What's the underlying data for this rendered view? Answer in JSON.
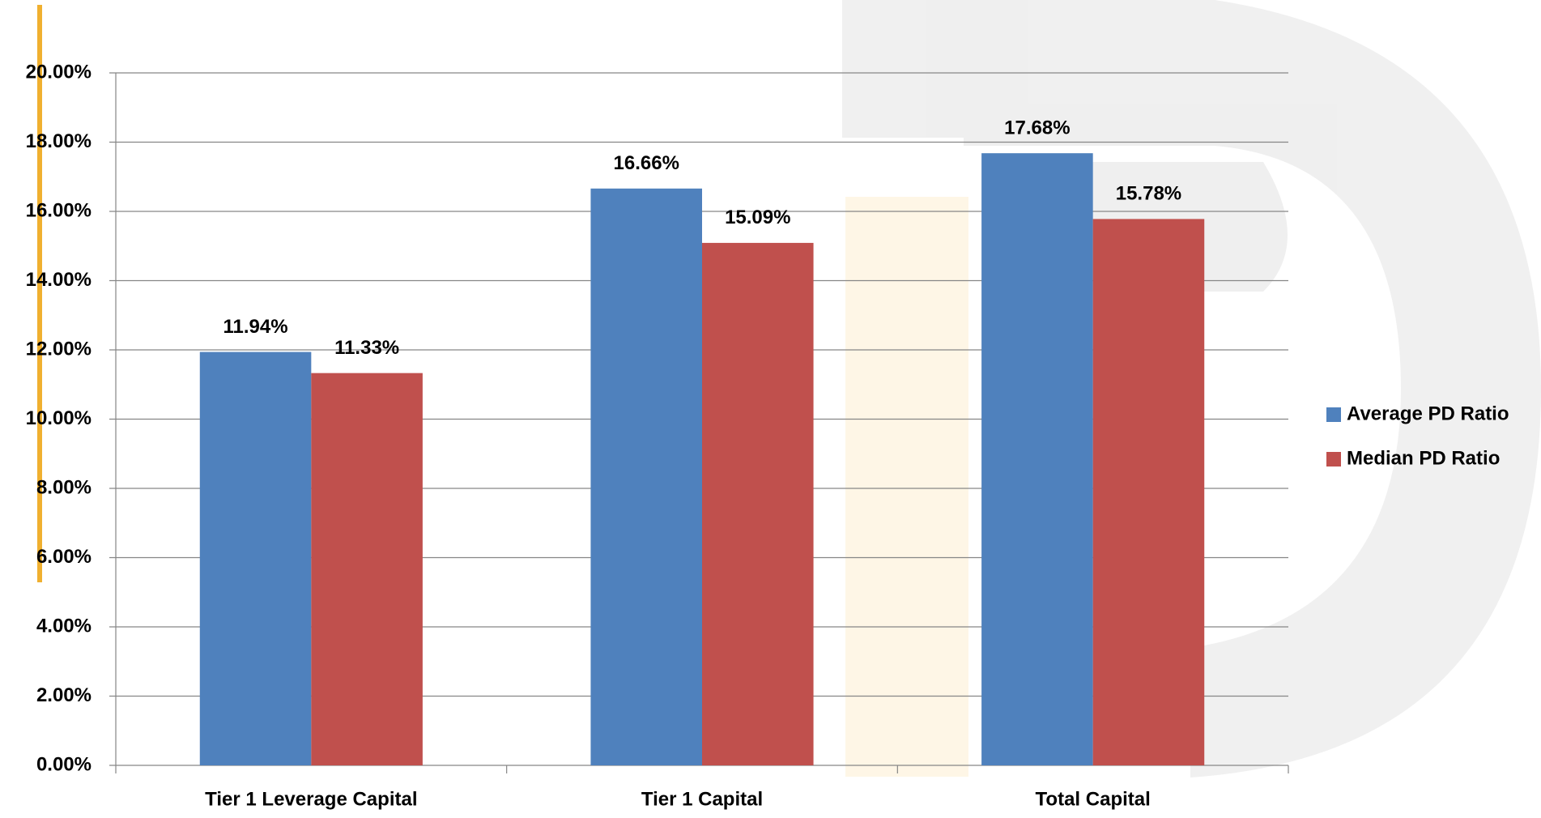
{
  "chart_data": {
    "type": "bar",
    "categories": [
      "Tier 1 Leverage Capital",
      "Tier 1 Capital",
      "Total Capital"
    ],
    "series": [
      {
        "name": "Average PD Ratio",
        "color": "#4f81bd",
        "values": [
          11.94,
          16.66,
          17.68
        ],
        "value_labels": [
          "11.94%",
          "16.66%",
          "17.68%"
        ]
      },
      {
        "name": "Median PD Ratio",
        "color": "#c0504d",
        "values": [
          11.33,
          15.09,
          15.78
        ],
        "value_labels": [
          "11.33%",
          "15.09%",
          "15.78%"
        ]
      }
    ],
    "ylim": [
      0,
      20
    ],
    "yticks": [
      {
        "value": 0,
        "label": "0.00%"
      },
      {
        "value": 2,
        "label": "2.00%"
      },
      {
        "value": 4,
        "label": "4.00%"
      },
      {
        "value": 6,
        "label": "6.00%"
      },
      {
        "value": 8,
        "label": "8.00%"
      },
      {
        "value": 10,
        "label": "10.00%"
      },
      {
        "value": 12,
        "label": "12.00%"
      },
      {
        "value": 14,
        "label": "14.00%"
      },
      {
        "value": 16,
        "label": "16.00%"
      },
      {
        "value": 18,
        "label": "18.00%"
      },
      {
        "value": 20,
        "label": "20.00%"
      }
    ],
    "grid": true,
    "legend": "right"
  }
}
